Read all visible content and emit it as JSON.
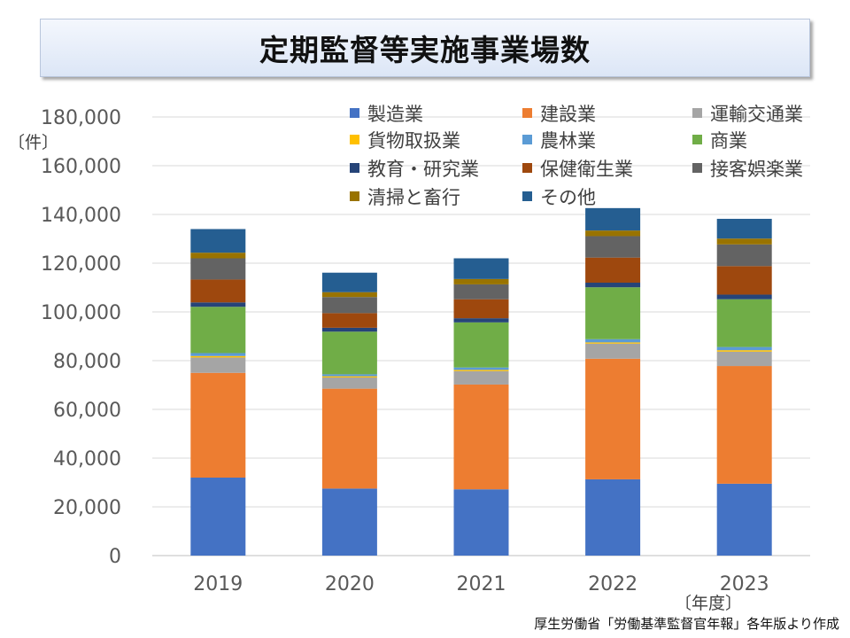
{
  "chart_data": {
    "type": "bar",
    "stacked": true,
    "title": "定期監督等実施事業場数",
    "ylabel": "〔件〕",
    "xlabel": "〔年度〕",
    "ylim": [
      0,
      180000
    ],
    "yticks": [
      "0",
      "20,000",
      "40,000",
      "60,000",
      "80,000",
      "100,000",
      "120,000",
      "140,000",
      "160,000",
      "180,000"
    ],
    "categories": [
      "2019",
      "2020",
      "2021",
      "2022",
      "2023"
    ],
    "series": [
      {
        "name": "製造業",
        "color": "#4472c4",
        "values": [
          32000,
          27500,
          27200,
          31300,
          29500
        ]
      },
      {
        "name": "建設業",
        "color": "#ed7d31",
        "values": [
          43000,
          41000,
          43000,
          49500,
          48300
        ]
      },
      {
        "name": "運輸交通業",
        "color": "#a5a5a5",
        "values": [
          6300,
          4600,
          5500,
          6200,
          5900
        ]
      },
      {
        "name": "貨物取扱業",
        "color": "#ffc000",
        "values": [
          600,
          500,
          500,
          500,
          600
        ]
      },
      {
        "name": "農林業",
        "color": "#5b9bd5",
        "values": [
          1200,
          800,
          1000,
          1300,
          1300
        ]
      },
      {
        "name": "商業",
        "color": "#70ad47",
        "values": [
          19000,
          17500,
          18500,
          21300,
          19600
        ]
      },
      {
        "name": "教育・研究業",
        "color": "#264478",
        "values": [
          1800,
          1600,
          1700,
          1900,
          1900
        ]
      },
      {
        "name": "保健衛生業",
        "color": "#9e480e",
        "values": [
          9400,
          6000,
          7800,
          10300,
          11700
        ]
      },
      {
        "name": "接客娯楽業",
        "color": "#636363",
        "values": [
          8700,
          6600,
          6100,
          8800,
          8900
        ]
      },
      {
        "name": "清掃と畜行",
        "color": "#997300",
        "values": [
          2300,
          2000,
          2200,
          2300,
          2400
        ]
      },
      {
        "name": "その他",
        "color": "#255e91",
        "values": [
          9700,
          8000,
          8500,
          9200,
          8100
        ]
      }
    ],
    "legend_position": "top-right"
  },
  "source_note": "厚生労働省「労働基準監督官年報」各年版より作成"
}
